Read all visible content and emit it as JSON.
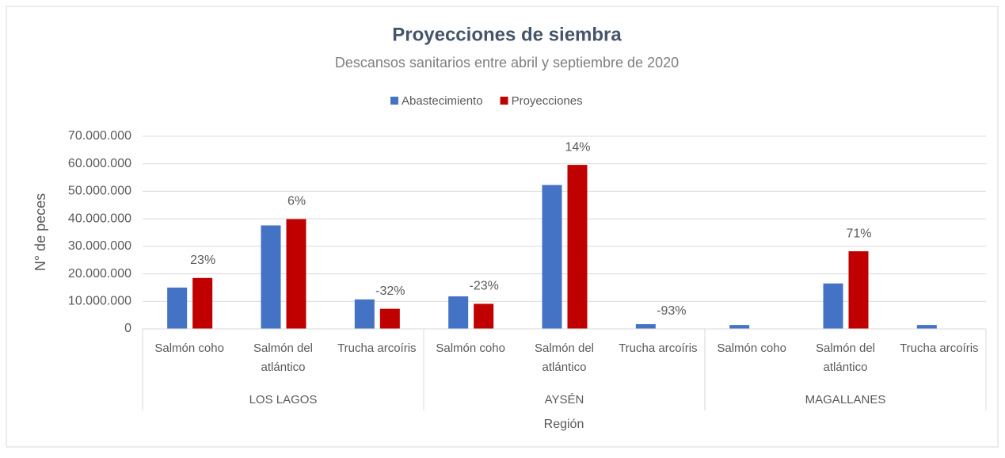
{
  "chart_data": {
    "type": "bar",
    "title": "Proyecciones de siembra",
    "subtitle": "Descansos sanitarios entre abril y septiembre de 2020",
    "x_label": "Región",
    "y_label": "N° de peces",
    "categories": [
      "Salmón coho",
      "Salmón del atlántico",
      "Trucha arcoíris",
      "Salmón coho",
      "Salmón del atlántico",
      "Trucha arcoíris",
      "Salmón coho",
      "Salmón del atlántico",
      "Trucha arcoíris"
    ],
    "group_labels": [
      "LOS LAGOS",
      null,
      null,
      "AYSÉN",
      null,
      null,
      "MAGALLANES",
      null,
      null
    ],
    "series": [
      {
        "name": "Abastecimiento",
        "color": "#4472c4",
        "values": [
          15000000,
          37600000,
          10700000,
          11800000,
          52300000,
          1700000,
          1400000,
          16500000,
          1400000
        ]
      },
      {
        "name": "Proyecciones",
        "color": "#c00000",
        "values": [
          18500000,
          39900000,
          7300000,
          9100000,
          59600000,
          120000,
          null,
          28200000,
          null
        ]
      }
    ],
    "change_labels": [
      "23%",
      "6%",
      "-32%",
      "-23%",
      "14%",
      "-93%",
      null,
      "71%",
      null
    ],
    "ylim": [
      0,
      70000000
    ],
    "yticks": [
      0,
      {
        "value": 10000000,
        "label": "10.000.000"
      },
      {
        "value": 20000000,
        "label": "20.000.000"
      },
      {
        "value": 30000000,
        "label": "30.000.000"
      },
      {
        "value": 40000000,
        "label": "40.000.000"
      },
      {
        "value": 50000000,
        "label": "50.000.000"
      },
      {
        "value": 60000000,
        "label": "60.000.000"
      },
      {
        "value": 70000000,
        "label": "70.000.000"
      }
    ],
    "grid": true,
    "legend": "top"
  }
}
